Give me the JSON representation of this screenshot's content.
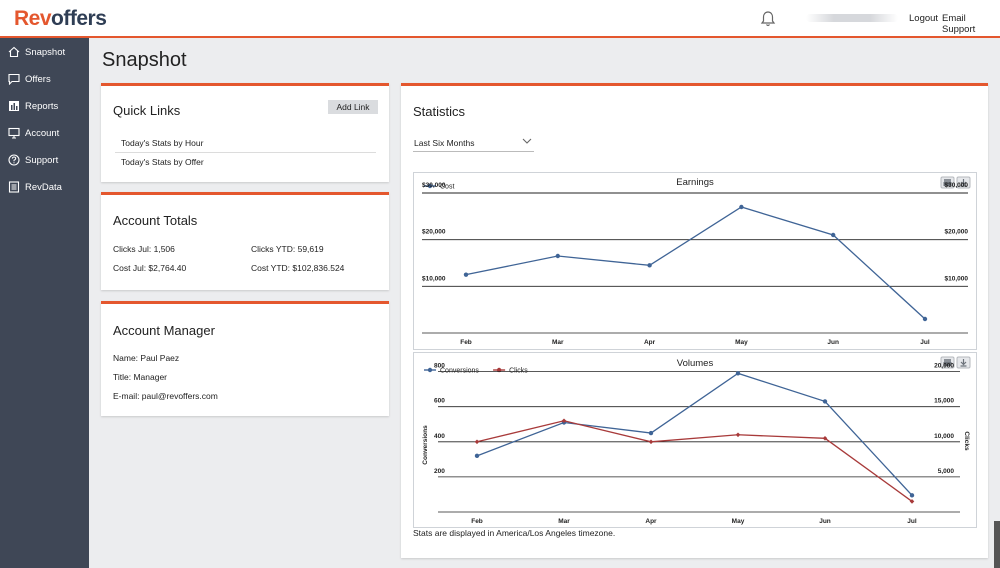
{
  "header": {
    "logo_rev": "Rev",
    "logo_offers": "offers",
    "logout": "Logout",
    "email_support": "Email Support"
  },
  "sidebar": {
    "items": [
      {
        "label": "Snapshot",
        "icon": "home-icon"
      },
      {
        "label": "Offers",
        "icon": "chat-icon"
      },
      {
        "label": "Reports",
        "icon": "bar-chart-icon"
      },
      {
        "label": "Account",
        "icon": "monitor-icon"
      },
      {
        "label": "Support",
        "icon": "help-circle-icon"
      },
      {
        "label": "RevData",
        "icon": "list-icon"
      }
    ]
  },
  "page": {
    "title": "Snapshot"
  },
  "quick_links": {
    "title": "Quick Links",
    "add_link": "Add Link",
    "links": [
      "Today's Stats by Hour",
      "Today's Stats by Offer"
    ]
  },
  "account_totals": {
    "title": "Account Totals",
    "clicks_jul": "Clicks Jul: 1,506",
    "clicks_ytd": "Clicks YTD: 59,619",
    "cost_jul": "Cost Jul: $2,764.40",
    "cost_ytd": "Cost YTD: $102,836.524"
  },
  "account_manager": {
    "title": "Account Manager",
    "name": "Name: Paul Paez",
    "role": "Title: Manager",
    "email": "E-mail: paul@revoffers.com"
  },
  "statistics": {
    "title": "Statistics",
    "period": "Last Six Months",
    "footnote": "Stats are displayed in America/Los Angeles timezone."
  },
  "colors": {
    "accent": "#e4572e",
    "sidebar": "#3f4756",
    "series_blue": "#3f6496",
    "series_red": "#a83a3a"
  },
  "chart_data": [
    {
      "type": "line",
      "title": "Earnings",
      "categories": [
        "Feb",
        "Mar",
        "Apr",
        "May",
        "Jun",
        "Jul"
      ],
      "series": [
        {
          "name": "Cost",
          "values": [
            12500,
            16500,
            14500,
            27000,
            21000,
            3000
          ],
          "axis": "left"
        }
      ],
      "ylim": [
        0,
        30000
      ],
      "ytick_labels": [
        "$10,000",
        "$20,000",
        "$30,000"
      ],
      "grid": true,
      "legend": "top-left"
    },
    {
      "type": "line",
      "title": "Volumes",
      "categories": [
        "Feb",
        "Mar",
        "Apr",
        "May",
        "Jun",
        "Jul"
      ],
      "series": [
        {
          "name": "Conversions",
          "values": [
            320,
            510,
            450,
            790,
            630,
            95
          ],
          "axis": "left"
        },
        {
          "name": "Clicks",
          "values": [
            10000,
            13000,
            10000,
            11000,
            10500,
            1506
          ],
          "axis": "right"
        }
      ],
      "ylabel": "Conversions",
      "y2label": "Clicks",
      "ylim": [
        0,
        800
      ],
      "y2lim": [
        0,
        20000
      ],
      "ytick_labels": [
        "200",
        "400",
        "600",
        "800"
      ],
      "y2tick_labels": [
        "5,000",
        "10,000",
        "15,000",
        "20,000"
      ],
      "grid": true,
      "legend": "top-left"
    }
  ]
}
